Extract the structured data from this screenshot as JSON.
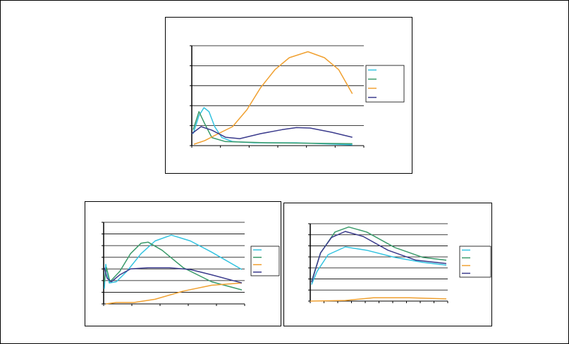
{
  "chart_data": [
    {
      "type": "line",
      "xlim": [
        0,
        24
      ],
      "ylim": [
        0,
        50
      ],
      "xticks": [
        0,
        4,
        8,
        12,
        16,
        20,
        24
      ],
      "yticks": [
        0,
        10,
        20,
        30,
        40,
        50
      ],
      "grid": true,
      "series": [
        {
          "color": "#33c3e0",
          "x": [
            0.2,
            1,
            1.7,
            2.4,
            3.2,
            4.2,
            5.7,
            8.7,
            14.6,
            22.4
          ],
          "values": [
            6,
            15,
            19,
            17,
            9.5,
            4,
            2,
            1.4,
            1.4,
            0.4
          ]
        },
        {
          "color": "#3a9a6a",
          "x": [
            0.2,
            1,
            1.8,
            2.8,
            4.7,
            10.6,
            22.4
          ],
          "values": [
            8,
            17,
            11,
            4,
            2,
            1.4,
            1
          ]
        },
        {
          "color": "#f0a030",
          "x": [
            0.3,
            1.8,
            3.7,
            5.7,
            7.7,
            9.6,
            11.6,
            13.6,
            16.2,
            18.5,
            20.5,
            22.4
          ],
          "values": [
            0.7,
            2.5,
            6,
            9.5,
            18,
            29,
            38,
            44,
            47,
            44,
            38,
            26
          ]
        },
        {
          "color": "#3a3a8c",
          "x": [
            0,
            1.3,
            2.8,
            4.7,
            6.7,
            9.6,
            12.6,
            14.6,
            16.5,
            19.5,
            22.4
          ],
          "values": [
            6,
            9.5,
            7.7,
            4.2,
            3.5,
            6,
            8,
            9,
            8.8,
            6.7,
            4.2
          ]
        }
      ]
    },
    {
      "type": "line",
      "xlim": [
        0,
        20
      ],
      "ylim": [
        0,
        70
      ],
      "xticks": [
        0,
        4,
        8,
        12,
        16,
        20
      ],
      "yticks": [
        0,
        10,
        20,
        30,
        40,
        50,
        60,
        70
      ],
      "grid": true,
      "series": [
        {
          "color": "#33c3e0",
          "x": [
            0.1,
            0.3,
            0.8,
            1.8,
            3.3,
            5.3,
            7.3,
            9.6,
            12.3,
            15.3,
            19.6
          ],
          "values": [
            13,
            34,
            18,
            19,
            28,
            43,
            54,
            59,
            54,
            44.5,
            29.5
          ]
        },
        {
          "color": "#3a9a6a",
          "x": [
            0.1,
            0.4,
            0.9,
            2.3,
            3.8,
            5.3,
            6.3,
            8.3,
            11.3,
            15.3,
            19.6
          ],
          "values": [
            19,
            31,
            19,
            28,
            43,
            52,
            53,
            46,
            31,
            19,
            12
          ]
        },
        {
          "color": "#f0a030",
          "x": [
            0.3,
            1.8,
            4.3,
            7.3,
            11.3,
            15.3,
            19.6
          ],
          "values": [
            0,
            1.2,
            1.2,
            4,
            11,
            16,
            18
          ]
        },
        {
          "color": "#3a3a8c",
          "x": [
            0.1,
            0.5,
            1.1,
            2.3,
            3.8,
            6.3,
            9.3,
            12.3,
            15.3,
            19.6
          ],
          "values": [
            31,
            22,
            19,
            25,
            30,
            31,
            31,
            29.5,
            25,
            18
          ]
        }
      ]
    },
    {
      "type": "line",
      "xlim": [
        0,
        20
      ],
      "ylim": [
        0,
        70
      ],
      "xticks": [
        0,
        2,
        4,
        6,
        8,
        10,
        12,
        14,
        16,
        18,
        20
      ],
      "yticks": [
        0,
        10,
        20,
        30,
        40,
        50,
        60,
        70
      ],
      "grid": true,
      "series": [
        {
          "color": "#33c3e0",
          "x": [
            0.2,
            1,
            2.6,
            5.1,
            8.2,
            12.3,
            16.4,
            19.8
          ],
          "values": [
            15,
            27,
            42,
            49,
            46,
            39.5,
            35,
            32.5
          ]
        },
        {
          "color": "#3a9a6a",
          "x": [
            0.2,
            1.5,
            3.6,
            5.6,
            8.2,
            12.3,
            16.4,
            19.8
          ],
          "values": [
            18,
            43.5,
            62.5,
            67,
            62.5,
            48.5,
            39.5,
            37
          ]
        },
        {
          "color": "#f0a030",
          "x": [
            0,
            5.1,
            9.2,
            14.4,
            19.8
          ],
          "values": [
            0,
            0.6,
            3,
            3,
            2
          ]
        },
        {
          "color": "#3a3a8c",
          "x": [
            0.2,
            1.5,
            3.1,
            5.1,
            7.7,
            11.3,
            15.4,
            19.8
          ],
          "values": [
            17,
            43.5,
            57.5,
            63,
            58.5,
            46,
            37,
            34
          ]
        }
      ]
    }
  ]
}
